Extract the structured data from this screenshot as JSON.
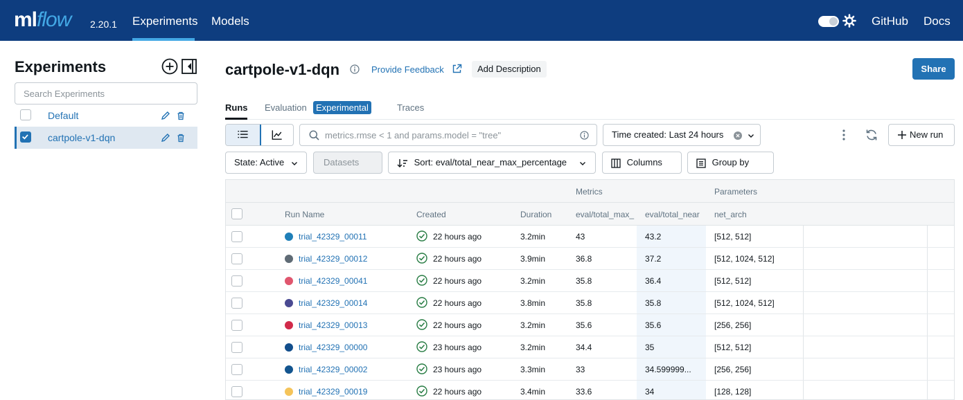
{
  "header": {
    "logo_ml": "ml",
    "logo_flow": "flow",
    "version": "2.20.1",
    "nav": [
      "Experiments",
      "Models"
    ],
    "github": "GitHub",
    "docs": "Docs"
  },
  "sidebar": {
    "title": "Experiments",
    "search_placeholder": "Search Experiments",
    "experiments": [
      {
        "name": "Default",
        "checked": false
      },
      {
        "name": "cartpole-v1-dqn",
        "checked": true
      }
    ]
  },
  "experiment": {
    "title": "cartpole-v1-dqn",
    "feedback": "Provide Feedback",
    "add_description": "Add Description",
    "share": "Share"
  },
  "tabs": {
    "runs": "Runs",
    "evaluation": "Evaluation",
    "experimental_badge": "Experimental",
    "traces": "Traces"
  },
  "toolbar": {
    "search_placeholder": "metrics.rmse < 1 and params.model = \"tree\"",
    "time_filter": "Time created: Last 24 hours",
    "new_run": "New run",
    "state": "State: Active",
    "datasets": "Datasets",
    "sort": "Sort: eval/total_near_max_percentage",
    "columns": "Columns",
    "group_by": "Group by"
  },
  "table": {
    "group_metrics": "Metrics",
    "group_params": "Parameters",
    "columns": [
      "Run Name",
      "Created",
      "Duration",
      "eval/total_max_",
      "eval/total_near",
      "net_arch"
    ],
    "rows": [
      {
        "name": "trial_42329_00011",
        "color": "#1f7fb8",
        "created": "22 hours ago",
        "duration": "3.2min",
        "m1": "43",
        "m2": "43.2",
        "arch": "[512, 512]"
      },
      {
        "name": "trial_42329_00012",
        "color": "#5f6b75",
        "created": "22 hours ago",
        "duration": "3.9min",
        "m1": "36.8",
        "m2": "37.2",
        "arch": "[512, 1024, 512]"
      },
      {
        "name": "trial_42329_00041",
        "color": "#e0566e",
        "created": "22 hours ago",
        "duration": "3.2min",
        "m1": "35.8",
        "m2": "36.4",
        "arch": "[512, 512]"
      },
      {
        "name": "trial_42329_00014",
        "color": "#4a4a92",
        "created": "22 hours ago",
        "duration": "3.8min",
        "m1": "35.8",
        "m2": "35.8",
        "arch": "[512, 1024, 512]"
      },
      {
        "name": "trial_42329_00013",
        "color": "#d12a4a",
        "created": "22 hours ago",
        "duration": "3.2min",
        "m1": "35.6",
        "m2": "35.6",
        "arch": "[256, 256]"
      },
      {
        "name": "trial_42329_00000",
        "color": "#124e8c",
        "created": "23 hours ago",
        "duration": "3.2min",
        "m1": "34.4",
        "m2": "35",
        "arch": "[512, 512]"
      },
      {
        "name": "trial_42329_00002",
        "color": "#13558f",
        "created": "23 hours ago",
        "duration": "3.3min",
        "m1": "33",
        "m2": "34.599999...",
        "arch": "[256, 256]"
      },
      {
        "name": "trial_42329_00019",
        "color": "#f5c45a",
        "created": "22 hours ago",
        "duration": "3.4min",
        "m1": "33.6",
        "m2": "34",
        "arch": "[128, 128]"
      }
    ]
  }
}
